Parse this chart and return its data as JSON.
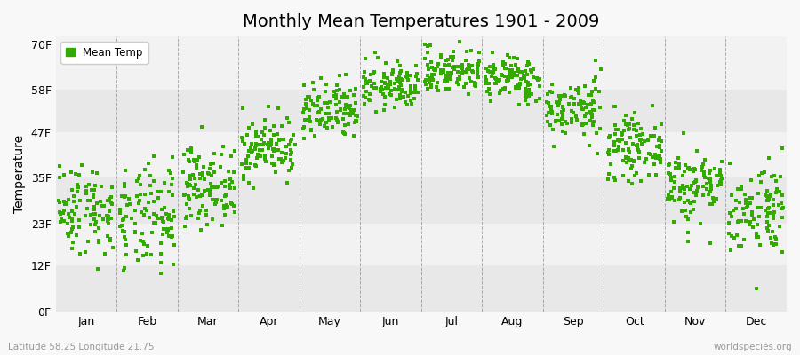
{
  "title": "Monthly Mean Temperatures 1901 - 2009",
  "ylabel": "Temperature",
  "xlabel_bottom_left": "Latitude 58.25 Longitude 21.75",
  "xlabel_bottom_right": "worldspecies.org",
  "ytick_labels": [
    "0F",
    "12F",
    "23F",
    "35F",
    "47F",
    "58F",
    "70F"
  ],
  "ytick_values": [
    0,
    12,
    23,
    35,
    47,
    58,
    70
  ],
  "xtick_labels": [
    "Jan",
    "Feb",
    "Mar",
    "Apr",
    "May",
    "Jun",
    "Jul",
    "Aug",
    "Sep",
    "Oct",
    "Nov",
    "Dec"
  ],
  "dot_color": "#33aa00",
  "legend_label": "Mean Temp",
  "title_fontsize": 14,
  "axis_label_fontsize": 10,
  "tick_fontsize": 9,
  "marker_size": 3,
  "ylim": [
    0,
    72
  ],
  "num_years": 109,
  "seed": 42,
  "monthly_means_F": [
    27,
    24,
    33,
    43,
    52,
    59,
    63,
    61,
    53,
    43,
    33,
    27
  ],
  "monthly_stds_F": [
    6,
    7,
    5,
    4,
    4,
    3,
    3,
    3,
    4,
    4,
    5,
    6
  ],
  "stripe_light": "#f2f2f2",
  "stripe_dark": "#e8e8e8",
  "fig_bg": "#f8f8f8",
  "dashed_color": "#999999"
}
